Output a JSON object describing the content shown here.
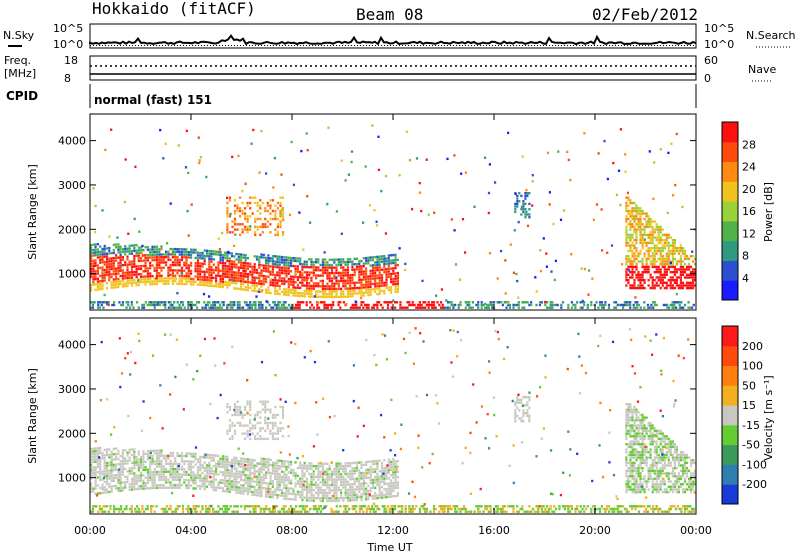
{
  "header": {
    "station": "Hokkaido (fitACF)",
    "beam": "Beam 08",
    "date": "02/Feb/2012"
  },
  "strip_noise": {
    "left_label": "N.Sky",
    "right_label": "N.Search",
    "tick_top": "10^5",
    "tick_bottom": "10^0"
  },
  "strip_freq": {
    "left_label": "Freq.",
    "left_unit": "[MHz]",
    "left_ticks": [
      "18",
      "8"
    ],
    "right_label": "Nave",
    "right_ticks": [
      "60",
      "0"
    ]
  },
  "cpid": {
    "label": "CPID",
    "text": "normal (fast) 151"
  },
  "colors": {
    "power_scale": [
      "#1a1aff",
      "#2a4fd0",
      "#2f9a7e",
      "#4fb24a",
      "#9ad23a",
      "#f2c21f",
      "#ff8a12",
      "#ff4a0c",
      "#ff1010"
    ],
    "velocity_scale": [
      "#1a3ad8",
      "#2e7fb0",
      "#3a9a5a",
      "#66cc33",
      "#c8c8c0",
      "#f2b020",
      "#ff7f10",
      "#ff4a0c",
      "#ff1a1a"
    ]
  },
  "chart_data": [
    {
      "type": "heatmap",
      "ylabel": "Slant Range [km]",
      "y_ticks": [
        "1000",
        "2000",
        "3000",
        "4000"
      ],
      "ylim": [
        180,
        4600
      ],
      "x_ticks": [
        "00:00",
        "04:00",
        "08:00",
        "12:00",
        "16:00",
        "20:00",
        "00:00"
      ],
      "xlim_hours": [
        0,
        24
      ],
      "colorbar_label": "Power [dB]",
      "colorbar_ticks": [
        "4",
        "8",
        "12",
        "16",
        "20",
        "24",
        "28"
      ],
      "colorbar_range": [
        0,
        32
      ]
    },
    {
      "type": "heatmap",
      "ylabel": "Slant Range [km]",
      "y_ticks": [
        "1000",
        "2000",
        "3000",
        "4000"
      ],
      "ylim": [
        180,
        4600
      ],
      "x_ticks": [
        "00:00",
        "04:00",
        "08:00",
        "12:00",
        "16:00",
        "20:00",
        "00:00"
      ],
      "xlim_hours": [
        0,
        24
      ],
      "xlabel": "Time UT",
      "colorbar_label": "Velocity [m s⁻¹]",
      "colorbar_ticks": [
        "200",
        "100",
        "50",
        "15",
        "-15",
        "-50",
        "-100",
        "-200"
      ]
    }
  ]
}
